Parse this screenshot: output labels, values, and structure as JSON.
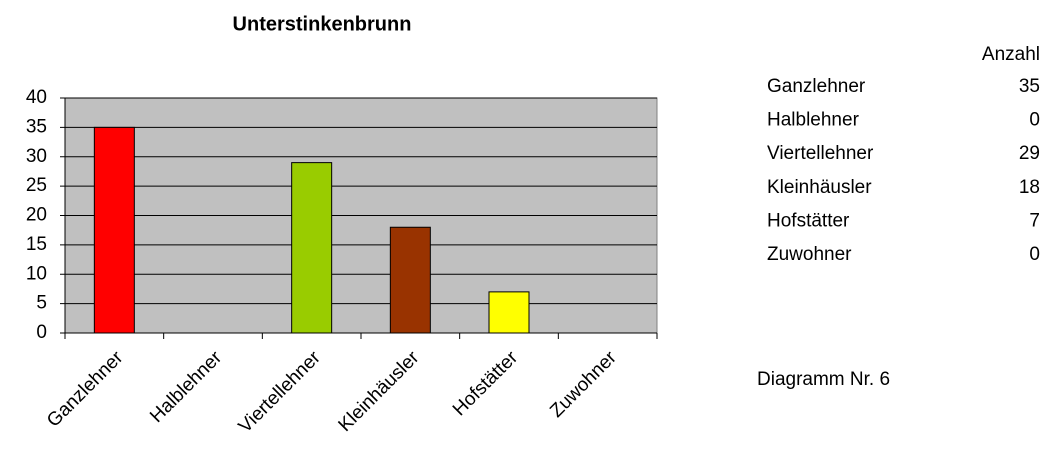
{
  "chart_data": {
    "type": "bar",
    "title": "Unterstinkenbrunn",
    "categories": [
      "Ganzlehner",
      "Halblehner",
      "Viertellehner",
      "Kleinhäusler",
      "Hofstätter",
      "Zuwohner"
    ],
    "values": [
      35,
      0,
      29,
      18,
      7,
      0
    ],
    "colors": [
      "#ff0000",
      "#000080",
      "#99cc00",
      "#993300",
      "#ffff00",
      "#00ffff"
    ],
    "ylim": [
      0,
      40
    ],
    "yticks": [
      0,
      5,
      10,
      15,
      20,
      25,
      30,
      35,
      40
    ],
    "grid": true,
    "table_header": "Anzahl",
    "caption": "Diagramm Nr. 6"
  }
}
